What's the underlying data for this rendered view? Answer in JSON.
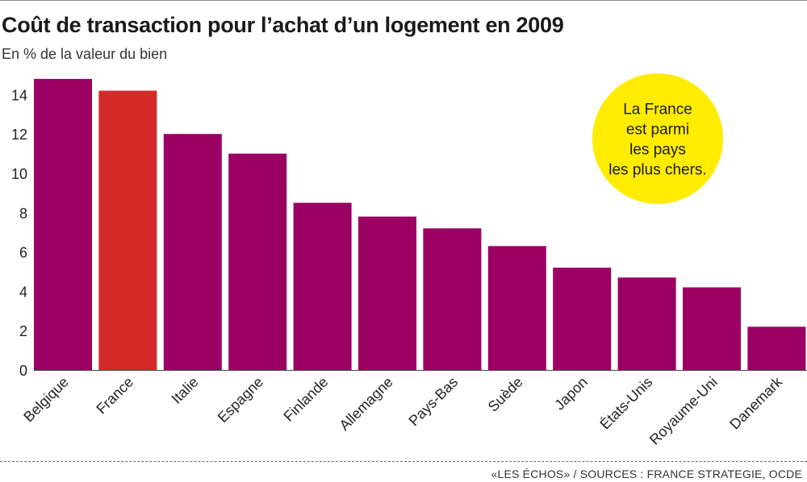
{
  "title": "Coût de transaction pour l’achat d’un logement en 2009",
  "subtitle": "En % de la valeur du bien",
  "footer": "«LES ÉCHOS» / SOURCES : FRANCE STRATEGIE, OCDE",
  "callout": [
    "La France",
    "est parmi",
    "les pays",
    "les plus chers."
  ],
  "colors": {
    "bar": "#9b0062",
    "highlight": "#d42a2a",
    "callout": "#ffec00"
  },
  "chart_data": {
    "type": "bar",
    "categories": [
      "Belgique",
      "France",
      "Italie",
      "Espagne",
      "Finlande",
      "Allemagne",
      "Pays-Bas",
      "Suède",
      "Japon",
      "États-Unis",
      "Royaume-Uni",
      "Danemark"
    ],
    "values": [
      14.8,
      14.2,
      12.0,
      11.0,
      8.5,
      7.8,
      7.2,
      6.3,
      5.2,
      4.7,
      4.2,
      2.2
    ],
    "highlight": "France",
    "ylim": [
      0,
      16
    ],
    "yticks": [
      0,
      2,
      4,
      6,
      8,
      10,
      12,
      14
    ],
    "grid": false
  }
}
